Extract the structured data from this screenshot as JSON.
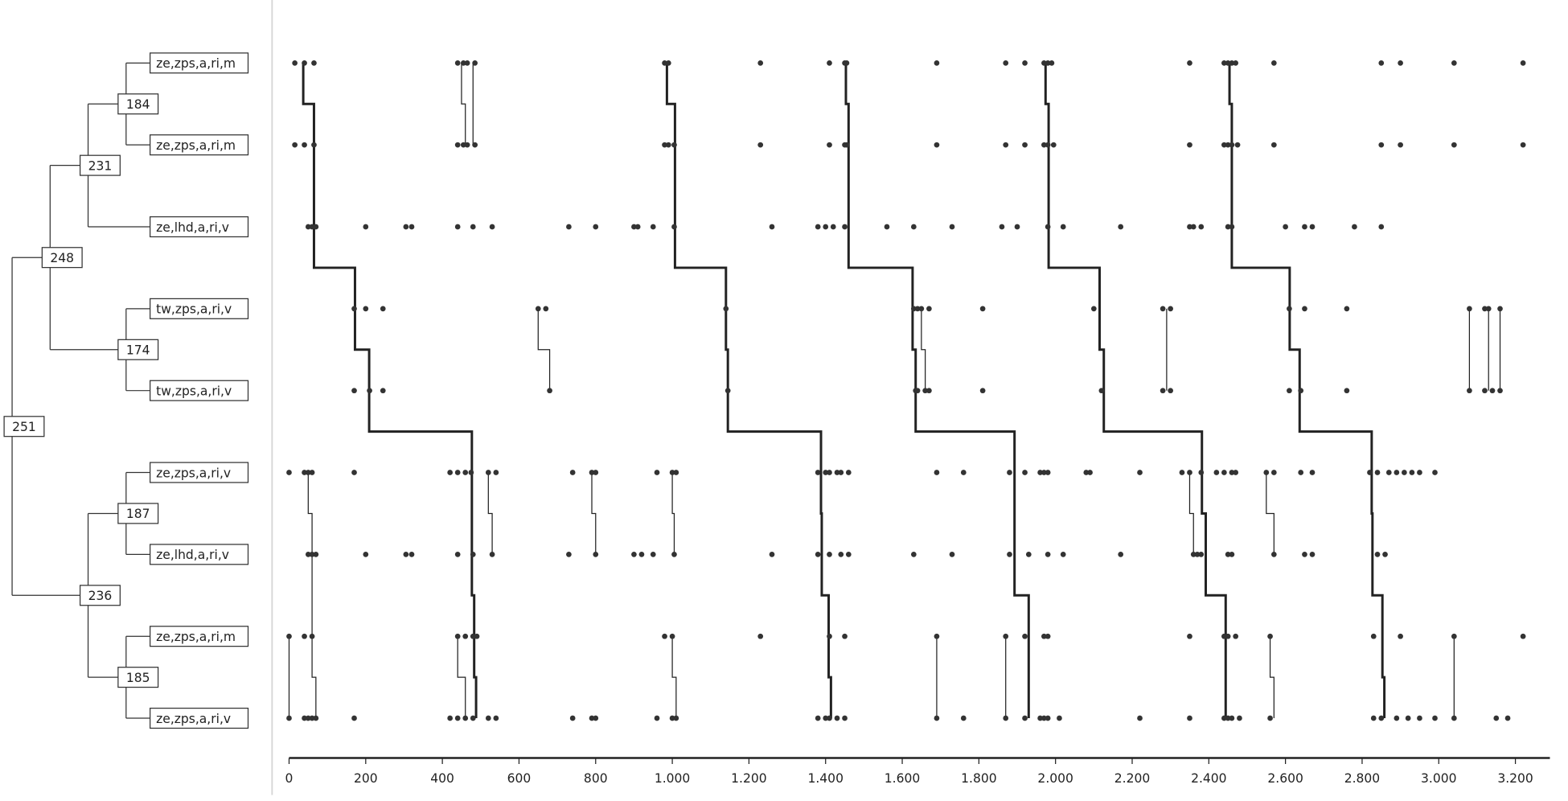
{
  "chart_data": {
    "type": "timeline",
    "xlim": [
      0,
      3290
    ],
    "xticks": [
      0,
      200,
      400,
      600,
      800,
      {
        "value": 1000,
        "label": "1.000"
      },
      {
        "value": 1200,
        "label": "1.200"
      },
      {
        "value": 1400,
        "label": "1.400"
      },
      {
        "value": 1600,
        "label": "1.600"
      },
      {
        "value": 1800,
        "label": "1.800"
      },
      {
        "value": 2000,
        "label": "2.000"
      },
      {
        "value": 2200,
        "label": "2.200"
      },
      {
        "value": 2400,
        "label": "2.400"
      },
      {
        "value": 2600,
        "label": "2.600"
      },
      {
        "value": 2800,
        "label": "2.800"
      },
      {
        "value": 3000,
        "label": "3.000"
      },
      {
        "value": 3200,
        "label": "3.200"
      }
    ],
    "tree": {
      "label": "251",
      "children": [
        {
          "label": "248",
          "children": [
            {
              "label": "231",
              "children": [
                {
                  "label": "184",
                  "children": [
                    {
                      "label": "ze,zps,a,ri,m"
                    },
                    {
                      "label": "ze,zps,a,ri,m"
                    }
                  ]
                },
                {
                  "label": "ze,lhd,a,ri,v"
                }
              ]
            },
            {
              "label": "174",
              "children": [
                {
                  "label": "tw,zps,a,ri,v"
                },
                {
                  "label": "tw,zps,a,ri,v"
                }
              ]
            }
          ]
        },
        {
          "label": "236",
          "children": [
            {
              "label": "187",
              "children": [
                {
                  "label": "ze,zps,a,ri,v"
                },
                {
                  "label": "ze,lhd,a,ri,v"
                }
              ]
            },
            {
              "label": "185",
              "children": [
                {
                  "label": "ze,zps,a,ri,m"
                },
                {
                  "label": "ze,zps,a,ri,v"
                }
              ]
            }
          ]
        }
      ]
    },
    "events": [
      [
        15,
        40,
        65,
        440,
        455,
        465,
        485,
        980,
        990,
        1230,
        1410,
        1450,
        1455,
        1690,
        1870,
        1920,
        1970,
        1980,
        1990,
        2350,
        2440,
        2450,
        2460,
        2470,
        2570,
        2850,
        2900,
        3040,
        3220
      ],
      [
        15,
        40,
        65,
        440,
        455,
        465,
        485,
        980,
        990,
        1005,
        1230,
        1410,
        1450,
        1455,
        1690,
        1870,
        1920,
        1970,
        1980,
        1995,
        2350,
        2440,
        2450,
        2460,
        2475,
        2570,
        2850,
        2900,
        3040,
        3220
      ],
      [
        50,
        60,
        70,
        200,
        305,
        320,
        440,
        480,
        530,
        730,
        800,
        900,
        910,
        950,
        1005,
        1260,
        1380,
        1400,
        1420,
        1450,
        1560,
        1630,
        1730,
        1860,
        1900,
        1980,
        2020,
        2170,
        2350,
        2360,
        2380,
        2450,
        2460,
        2600,
        2650,
        2670,
        2780,
        2850
      ],
      [
        170,
        200,
        245,
        650,
        670,
        1140,
        1630,
        1640,
        1650,
        1670,
        1810,
        2100,
        2280,
        2300,
        2610,
        2650,
        2760,
        3080,
        3120,
        3130,
        3160
      ],
      [
        170,
        210,
        245,
        680,
        1145,
        1635,
        1640,
        1660,
        1670,
        1810,
        2120,
        2280,
        2300,
        2610,
        2640,
        2760,
        3080,
        3120,
        3140,
        3160
      ],
      [
        0,
        40,
        50,
        60,
        170,
        420,
        440,
        460,
        475,
        520,
        540,
        740,
        790,
        800,
        960,
        1000,
        1010,
        1380,
        1400,
        1410,
        1430,
        1440,
        1460,
        1690,
        1760,
        1880,
        1920,
        1960,
        1970,
        1980,
        2080,
        2090,
        2220,
        2330,
        2350,
        2380,
        2420,
        2440,
        2460,
        2470,
        2550,
        2570,
        2640,
        2670,
        2820,
        2840,
        2870,
        2890,
        2910,
        2930,
        2950,
        2990
      ],
      [
        50,
        60,
        70,
        200,
        305,
        320,
        440,
        480,
        530,
        730,
        800,
        900,
        920,
        950,
        1005,
        1260,
        1380,
        1410,
        1440,
        1460,
        1630,
        1730,
        1880,
        1930,
        1980,
        2020,
        2170,
        2360,
        2370,
        2380,
        2450,
        2460,
        2570,
        2650,
        2670,
        2840,
        2860
      ],
      [
        0,
        40,
        60,
        440,
        460,
        480,
        490,
        980,
        1000,
        1230,
        1410,
        1450,
        1690,
        1870,
        1920,
        1970,
        1980,
        2350,
        2440,
        2450,
        2470,
        2560,
        2830,
        2900,
        3040,
        3220
      ],
      [
        0,
        40,
        50,
        60,
        70,
        170,
        420,
        440,
        460,
        480,
        520,
        540,
        740,
        790,
        800,
        960,
        1000,
        1010,
        1380,
        1400,
        1410,
        1430,
        1450,
        1690,
        1760,
        1870,
        1920,
        1960,
        1970,
        1980,
        2010,
        2220,
        2350,
        2440,
        2450,
        2460,
        2480,
        2560,
        2830,
        2850,
        2890,
        2920,
        2950,
        2990,
        3040,
        3150,
        3180
      ]
    ],
    "thick_paths": [
      [
        37,
        65,
        65,
        172,
        209,
        477,
        477,
        483,
        488
      ],
      [
        986,
        1007,
        1007,
        1140,
        1145,
        1388,
        1390,
        1408,
        1414
      ],
      [
        1453,
        1460,
        1460,
        1627,
        1635,
        1893,
        1893,
        1930,
        1930
      ],
      [
        1974,
        1982,
        1982,
        2115,
        2126,
        2382,
        2392,
        2444,
        2444
      ],
      [
        2454,
        2460,
        2460,
        2611,
        2637,
        2825,
        2827,
        2853,
        2858
      ]
    ],
    "thin_paths": [
      [
        450,
        460,
        null,
        null,
        null,
        null,
        null,
        null,
        null
      ],
      [
        480,
        480,
        null,
        null,
        null,
        null,
        null,
        null,
        null
      ],
      [
        null,
        null,
        null,
        650,
        680,
        null,
        null,
        null,
        null
      ],
      [
        null,
        null,
        null,
        1650,
        1660,
        null,
        null,
        null,
        null
      ],
      [
        null,
        null,
        null,
        2290,
        2290,
        null,
        null,
        null,
        null
      ],
      [
        null,
        null,
        null,
        3080,
        3080,
        null,
        null,
        null,
        null
      ],
      [
        null,
        null,
        null,
        3130,
        3130,
        null,
        null,
        null,
        null
      ],
      [
        null,
        null,
        null,
        3160,
        3160,
        null,
        null,
        null,
        null
      ],
      [
        null,
        null,
        null,
        null,
        null,
        520,
        530,
        null,
        null
      ],
      [
        null,
        null,
        null,
        null,
        null,
        790,
        800,
        null,
        null
      ],
      [
        null,
        null,
        null,
        null,
        null,
        1000,
        1005,
        null,
        null
      ],
      [
        null,
        null,
        null,
        null,
        null,
        2350,
        2360,
        null,
        null
      ],
      [
        null,
        null,
        null,
        null,
        null,
        2550,
        2570,
        null,
        null
      ],
      [
        null,
        null,
        null,
        null,
        null,
        50,
        60,
        60,
        70
      ],
      [
        null,
        null,
        null,
        null,
        null,
        null,
        null,
        0,
        0
      ],
      [
        null,
        null,
        null,
        null,
        null,
        null,
        null,
        1000,
        1010
      ],
      [
        null,
        null,
        null,
        null,
        null,
        null,
        null,
        1690,
        1690
      ],
      [
        null,
        null,
        null,
        null,
        null,
        null,
        null,
        1870,
        1870
      ],
      [
        null,
        null,
        null,
        null,
        null,
        null,
        null,
        2560,
        2570
      ],
      [
        null,
        null,
        null,
        null,
        null,
        null,
        null,
        3040,
        3040
      ],
      [
        null,
        null,
        null,
        null,
        null,
        null,
        null,
        440,
        460
      ]
    ]
  }
}
